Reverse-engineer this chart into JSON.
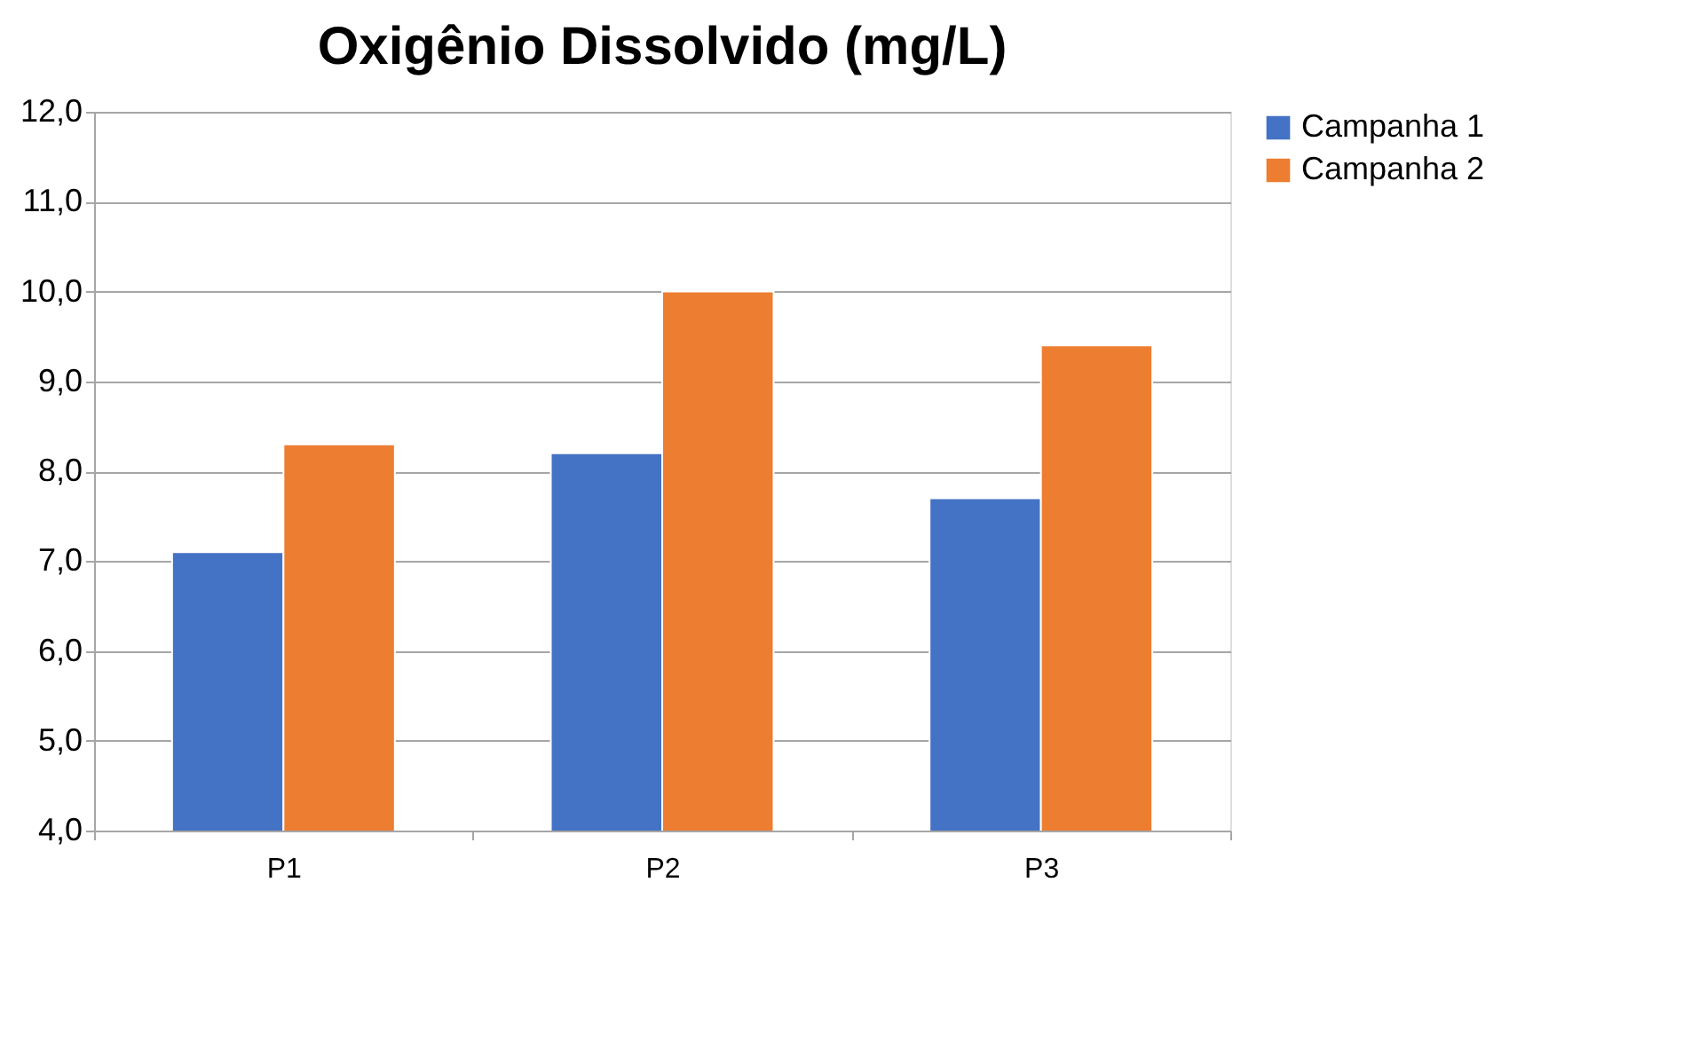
{
  "chart_data": {
    "type": "bar",
    "title": "Oxigênio Dissolvido (mg/L)",
    "categories": [
      "P1",
      "P2",
      "P3"
    ],
    "series": [
      {
        "name": "Campanha 1",
        "color": "#4472c4",
        "values": [
          7.1,
          8.2,
          7.7
        ]
      },
      {
        "name": "Campanha 2",
        "color": "#ed7d31",
        "values": [
          8.3,
          10.0,
          9.4
        ]
      }
    ],
    "ylim": [
      4,
      12
    ],
    "yticks": [
      {
        "value": 4,
        "label": "4,0"
      },
      {
        "value": 5,
        "label": "5,0"
      },
      {
        "value": 6,
        "label": "6,0"
      },
      {
        "value": 7,
        "label": "7,0"
      },
      {
        "value": 8,
        "label": "8,0"
      },
      {
        "value": 9,
        "label": "9,0"
      },
      {
        "value": 10,
        "label": "10,0"
      },
      {
        "value": 11,
        "label": "11,0"
      },
      {
        "value": 12,
        "label": "12,0"
      }
    ],
    "grid": "y",
    "legend": "right"
  }
}
